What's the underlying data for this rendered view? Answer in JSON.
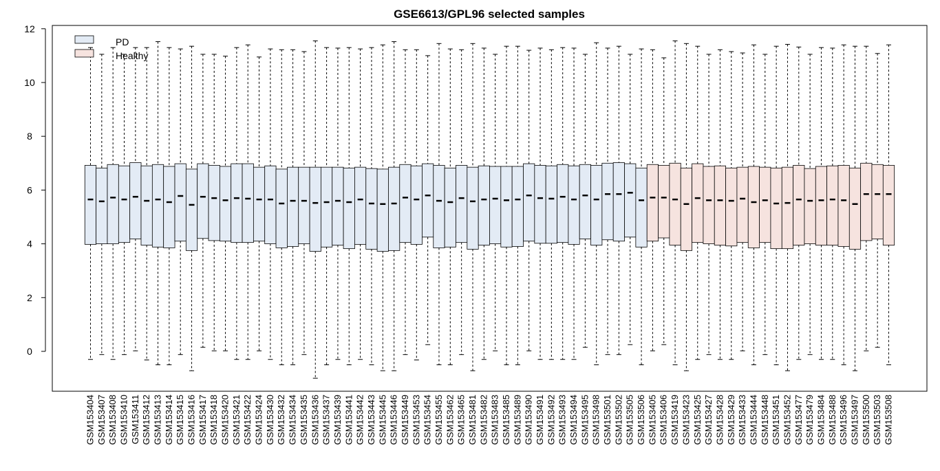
{
  "chart_data": {
    "type": "box",
    "title": "GSE6613/GPL96 selected samples",
    "xlabel": "",
    "ylabel": "",
    "ylim": [
      -1.5,
      12.1
    ],
    "yticks": [
      0,
      2,
      4,
      6,
      8,
      10,
      12
    ],
    "legend": {
      "placement": "top-left",
      "entries": [
        {
          "name": "PD",
          "color": "#e3ebf5"
        },
        {
          "name": "Healthy",
          "color": "#f6e3df"
        }
      ]
    },
    "categories": [
      "GSM153404",
      "GSM153407",
      "GSM153408",
      "GSM153410",
      "GSM153411",
      "GSM153412",
      "GSM153413",
      "GSM153414",
      "GSM153415",
      "GSM153416",
      "GSM153417",
      "GSM153418",
      "GSM153420",
      "GSM153421",
      "GSM153422",
      "GSM153424",
      "GSM153430",
      "GSM153432",
      "GSM153434",
      "GSM153435",
      "GSM153436",
      "GSM153437",
      "GSM153439",
      "GSM153441",
      "GSM153442",
      "GSM153443",
      "GSM153445",
      "GSM153446",
      "GSM153449",
      "GSM153453",
      "GSM153454",
      "GSM153455",
      "GSM153462",
      "GSM153465",
      "GSM153481",
      "GSM153482",
      "GSM153483",
      "GSM153485",
      "GSM153489",
      "GSM153490",
      "GSM153491",
      "GSM153492",
      "GSM153493",
      "GSM153494",
      "GSM153495",
      "GSM153498",
      "GSM153501",
      "GSM153502",
      "GSM153505",
      "GSM153506",
      "GSM153405",
      "GSM153406",
      "GSM153419",
      "GSM153423",
      "GSM153425",
      "GSM153427",
      "GSM153428",
      "GSM153429",
      "GSM153433",
      "GSM153444",
      "GSM153448",
      "GSM153451",
      "GSM153452",
      "GSM153477",
      "GSM153479",
      "GSM153484",
      "GSM153488",
      "GSM153496",
      "GSM153497",
      "GSM153500",
      "GSM153503",
      "GSM153508"
    ],
    "groups": [
      "PD",
      "PD",
      "PD",
      "PD",
      "PD",
      "PD",
      "PD",
      "PD",
      "PD",
      "PD",
      "PD",
      "PD",
      "PD",
      "PD",
      "PD",
      "PD",
      "PD",
      "PD",
      "PD",
      "PD",
      "PD",
      "PD",
      "PD",
      "PD",
      "PD",
      "PD",
      "PD",
      "PD",
      "PD",
      "PD",
      "PD",
      "PD",
      "PD",
      "PD",
      "PD",
      "PD",
      "PD",
      "PD",
      "PD",
      "PD",
      "PD",
      "PD",
      "PD",
      "PD",
      "PD",
      "PD",
      "PD",
      "PD",
      "PD",
      "PD",
      "Healthy",
      "Healthy",
      "Healthy",
      "Healthy",
      "Healthy",
      "Healthy",
      "Healthy",
      "Healthy",
      "Healthy",
      "Healthy",
      "Healthy",
      "Healthy",
      "Healthy",
      "Healthy",
      "Healthy",
      "Healthy",
      "Healthy",
      "Healthy",
      "Healthy",
      "Healthy",
      "Healthy",
      "Healthy"
    ],
    "median": [
      5.65,
      5.58,
      5.72,
      5.65,
      5.75,
      5.6,
      5.65,
      5.55,
      5.78,
      5.45,
      5.75,
      5.7,
      5.62,
      5.7,
      5.68,
      5.65,
      5.65,
      5.5,
      5.6,
      5.6,
      5.52,
      5.55,
      5.6,
      5.55,
      5.65,
      5.5,
      5.48,
      5.5,
      5.72,
      5.65,
      5.8,
      5.6,
      5.55,
      5.7,
      5.58,
      5.65,
      5.68,
      5.62,
      5.65,
      5.8,
      5.7,
      5.68,
      5.75,
      5.65,
      5.8,
      5.65,
      5.85,
      5.85,
      5.9,
      5.62,
      5.72,
      5.72,
      5.65,
      5.48,
      5.7,
      5.62,
      5.62,
      5.6,
      5.68,
      5.55,
      5.62,
      5.5,
      5.52,
      5.65,
      5.6,
      5.62,
      5.65,
      5.62,
      5.48,
      5.85,
      5.85,
      5.85
    ],
    "q1": [
      3.98,
      4.0,
      4.0,
      4.05,
      4.18,
      3.95,
      3.88,
      3.85,
      4.1,
      3.75,
      4.2,
      4.12,
      4.1,
      4.05,
      4.05,
      4.1,
      4.0,
      3.85,
      3.9,
      4.0,
      3.72,
      3.88,
      3.95,
      3.82,
      3.98,
      3.8,
      3.72,
      3.75,
      4.05,
      3.98,
      4.25,
      3.85,
      3.88,
      4.05,
      3.8,
      3.95,
      4.0,
      3.88,
      3.9,
      4.1,
      4.02,
      4.02,
      4.05,
      3.98,
      4.18,
      3.95,
      4.15,
      4.1,
      4.25,
      3.88,
      4.1,
      4.22,
      3.95,
      3.75,
      4.05,
      4.0,
      3.95,
      3.92,
      4.05,
      3.85,
      4.05,
      3.82,
      3.82,
      3.95,
      4.0,
      3.95,
      3.95,
      3.9,
      3.8,
      4.12,
      4.18,
      3.95
    ],
    "q3": [
      6.92,
      6.82,
      6.95,
      6.9,
      7.02,
      6.9,
      6.95,
      6.88,
      6.98,
      6.78,
      6.98,
      6.92,
      6.88,
      6.98,
      6.98,
      6.85,
      6.9,
      6.78,
      6.85,
      6.85,
      6.85,
      6.85,
      6.85,
      6.82,
      6.85,
      6.8,
      6.78,
      6.85,
      6.95,
      6.9,
      6.98,
      6.92,
      6.82,
      6.92,
      6.85,
      6.9,
      6.88,
      6.88,
      6.88,
      6.98,
      6.92,
      6.9,
      6.95,
      6.9,
      6.95,
      6.92,
      7.0,
      7.02,
      6.98,
      6.82,
      6.95,
      6.92,
      7.0,
      6.82,
      6.98,
      6.88,
      6.9,
      6.82,
      6.85,
      6.88,
      6.85,
      6.82,
      6.85,
      6.92,
      6.8,
      6.88,
      6.9,
      6.92,
      6.82,
      7.0,
      6.95,
      6.92
    ],
    "whisker_low": [
      -0.3,
      -0.12,
      -0.3,
      -0.12,
      0.02,
      -0.32,
      -0.5,
      -0.5,
      -0.12,
      -0.72,
      0.15,
      0.02,
      0.02,
      -0.3,
      -0.3,
      0.02,
      -0.3,
      -0.5,
      -0.5,
      -0.12,
      -1.0,
      -0.5,
      -0.3,
      -0.5,
      -0.3,
      -0.5,
      -0.72,
      -0.72,
      -0.12,
      -0.32,
      0.25,
      -0.5,
      -0.5,
      -0.12,
      -0.72,
      -0.3,
      0.02,
      -0.5,
      -0.5,
      0.02,
      -0.3,
      -0.3,
      -0.3,
      -0.3,
      0.15,
      -0.5,
      -0.12,
      -0.12,
      0.25,
      -0.5,
      0.02,
      0.25,
      -0.5,
      -0.72,
      -0.3,
      -0.12,
      -0.3,
      -0.3,
      0.02,
      -0.5,
      -0.12,
      -0.5,
      -0.72,
      -0.3,
      -0.12,
      -0.3,
      -0.3,
      -0.5,
      -0.72,
      0.02,
      0.15,
      -0.5
    ],
    "whisker_high": [
      11.3,
      11.05,
      11.3,
      11.05,
      11.3,
      11.3,
      11.52,
      11.3,
      11.25,
      11.35,
      11.05,
      11.05,
      10.98,
      11.3,
      11.4,
      10.95,
      11.25,
      11.22,
      11.22,
      11.15,
      11.55,
      11.3,
      11.28,
      11.3,
      11.25,
      11.3,
      11.4,
      11.52,
      11.22,
      11.22,
      11.0,
      11.45,
      11.25,
      11.22,
      11.45,
      11.28,
      11.05,
      11.35,
      11.35,
      11.2,
      11.28,
      11.22,
      11.3,
      11.28,
      11.05,
      11.48,
      11.28,
      11.35,
      11.05,
      11.25,
      11.22,
      10.92,
      11.55,
      11.45,
      11.35,
      11.05,
      11.22,
      11.15,
      11.1,
      11.4,
      11.05,
      11.35,
      11.42,
      11.32,
      11.05,
      11.3,
      11.28,
      11.4,
      11.35,
      11.35,
      11.08,
      11.4
    ]
  }
}
